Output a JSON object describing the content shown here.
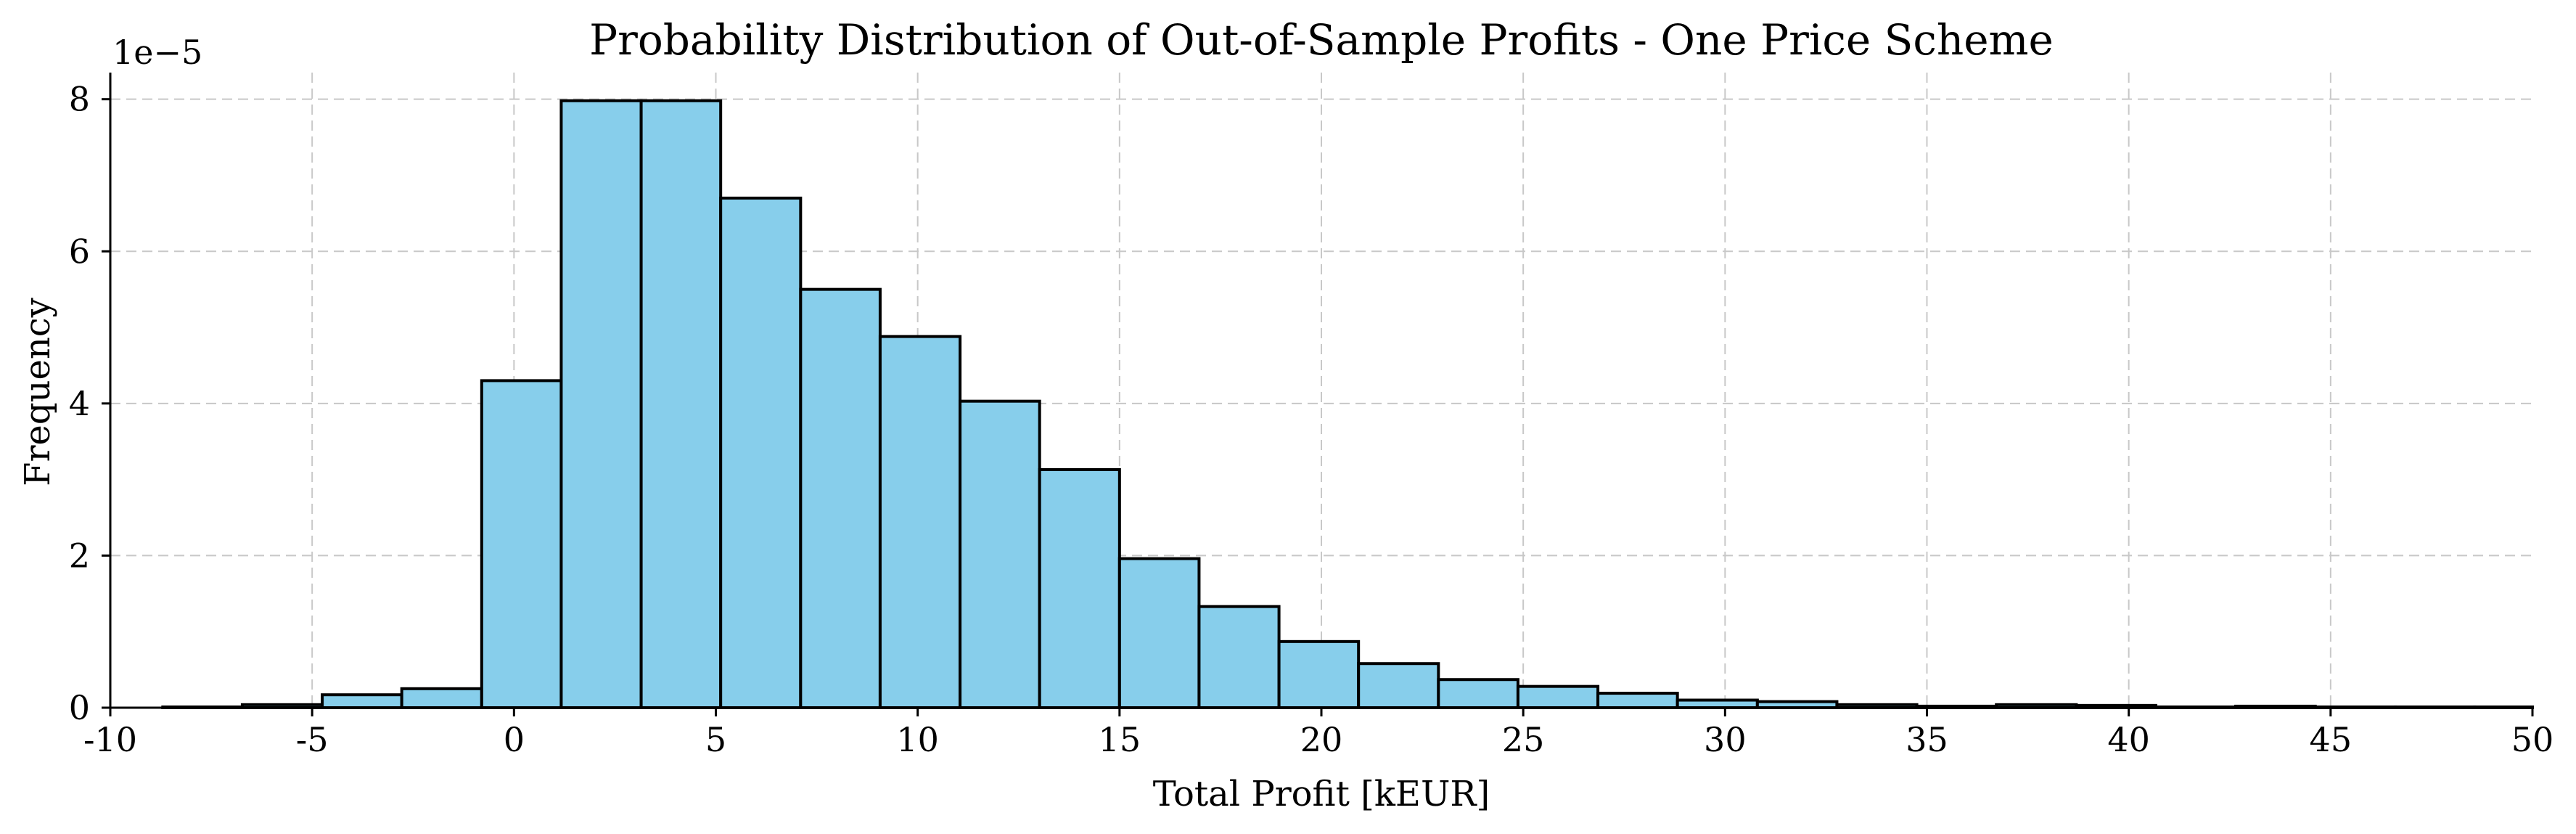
{
  "chart_data": {
    "type": "bar",
    "title": "Probability Distribution of Out-of-Sample Profits - One Price Scheme",
    "xlabel": "Total Profit [kEUR]",
    "ylabel": "Frequency",
    "y_offset_text": "1e−5",
    "xlim": [
      -10,
      50
    ],
    "ylim": [
      0,
      8.35
    ],
    "grid": true,
    "colors": {
      "bar_fill": "#87CEEB",
      "bar_edge": "#000000",
      "grid": "#c8c8c8"
    },
    "x_ticks": [
      -10,
      -5,
      0,
      5,
      10,
      15,
      20,
      25,
      30,
      35,
      40,
      45,
      50
    ],
    "x_tick_labels": [
      "-10",
      "-5",
      "0",
      "5",
      "10",
      "15",
      "20",
      "25",
      "30",
      "35",
      "40",
      "45",
      "50"
    ],
    "y_ticks": [
      0,
      2,
      4,
      6,
      8
    ],
    "y_tick_labels": [
      "0",
      "2",
      "4",
      "6",
      "8"
    ],
    "bin_edges": [
      -8.7,
      -6.73,
      -4.75,
      -2.78,
      -0.8,
      1.17,
      3.15,
      5.12,
      7.1,
      9.07,
      11.05,
      13.02,
      15.0,
      16.97,
      18.95,
      20.92,
      22.9,
      24.87,
      26.85,
      28.82,
      30.8,
      32.77,
      34.75,
      36.72,
      38.7,
      40.67,
      42.65,
      44.62,
      46.6,
      48.57,
      50.0
    ],
    "values": [
      0.01,
      0.04,
      0.17,
      0.25,
      4.3,
      7.98,
      7.98,
      6.7,
      5.5,
      4.88,
      4.03,
      3.13,
      1.96,
      1.33,
      0.87,
      0.58,
      0.37,
      0.28,
      0.19,
      0.1,
      0.08,
      0.04,
      0.02,
      0.04,
      0.03,
      0.01,
      0.02,
      0.01,
      0.01,
      0.01
    ]
  }
}
